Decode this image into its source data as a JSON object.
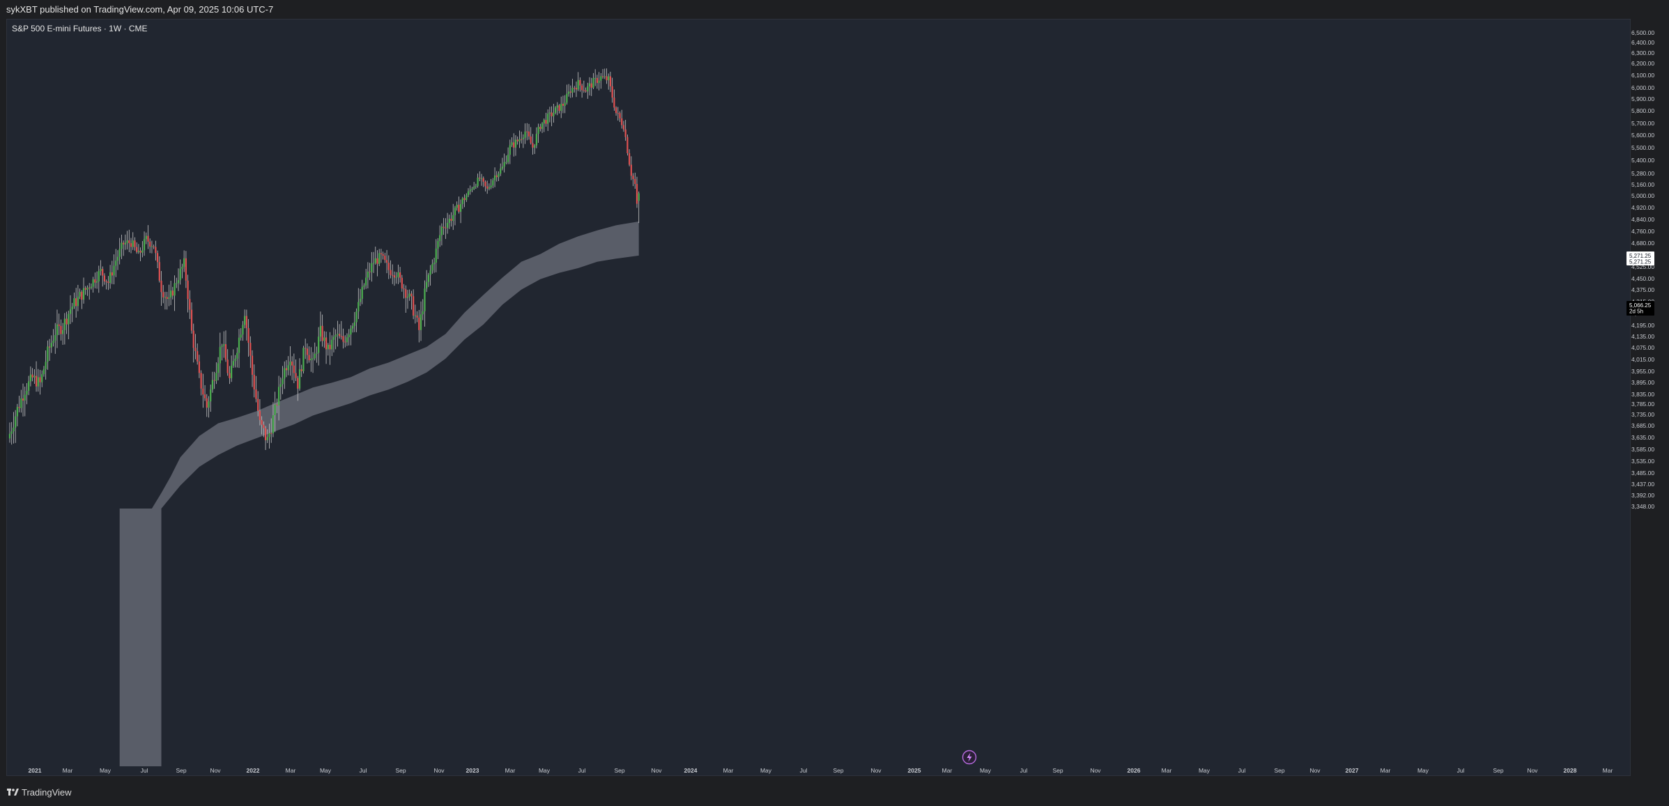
{
  "header": {
    "publisher_line": "sykXBT published on TradingView.com, Apr 09, 2025 10:06 UTC-7"
  },
  "footer": {
    "brand": "TradingView",
    "logo_icon": "tradingview-logo-icon"
  },
  "colors": {
    "up": "#4caf50",
    "down": "#e05252",
    "band": "#5d606b",
    "background": "#212630",
    "wick": "#c8c8c8"
  },
  "chart_data": {
    "type": "candlestick",
    "title": "S&P 500 E-mini Futures · 1W · CME",
    "timeframe": "1W",
    "x_axis_labels": [
      "2021",
      "Mar",
      "May",
      "Jul",
      "Sep",
      "Nov",
      "2022",
      "Mar",
      "May",
      "Jul",
      "Sep",
      "Nov",
      "2023",
      "Mar",
      "May",
      "Jul",
      "Sep",
      "Nov",
      "2024",
      "Mar",
      "May",
      "Jul",
      "Sep",
      "Nov",
      "2025",
      "Mar",
      "May",
      "Jul",
      "Sep",
      "Nov",
      "2026",
      "Mar",
      "May",
      "Jul",
      "Sep",
      "Nov",
      "2027",
      "Mar",
      "May",
      "Jul",
      "Sep",
      "Nov",
      "2028",
      "Mar"
    ],
    "y_axis_labels": [
      "6,500.00",
      "6,400.00",
      "6,300.00",
      "6,200.00",
      "6,100.00",
      "6,000.00",
      "5,900.00",
      "5,800.00",
      "5,700.00",
      "5,600.00",
      "5,500.00",
      "5,400.00",
      "5,280.00",
      "5,160.00",
      "5,000.00",
      "4,920.00",
      "4,840.00",
      "4,760.00",
      "4,680.00",
      "4,600.00",
      "4,525.00",
      "4,450.00",
      "4,375.00",
      "4,315.00",
      "4,255.00",
      "4,195.00",
      "4,135.00",
      "4,075.00",
      "4,015.00",
      "3,955.00",
      "3,895.00",
      "3,835.00",
      "3,785.00",
      "3,735.00",
      "3,685.00",
      "3,635.00",
      "3,585.00",
      "3,535.00",
      "3,485.00",
      "3,437.00",
      "3,392.00",
      "3,348.00"
    ],
    "price_labels": {
      "upper_top": "5,271.25",
      "upper_bottom": "5,271.25",
      "current": "5,066.25",
      "countdown": "2d 5h"
    },
    "series": [
      {
        "type": "close_path",
        "values": [
          [
            0,
            3660
          ],
          [
            4,
            3770
          ],
          [
            8,
            3870
          ],
          [
            12,
            3930
          ],
          [
            16,
            3900
          ],
          [
            20,
            4060
          ],
          [
            24,
            4170
          ],
          [
            28,
            4200
          ],
          [
            32,
            4290
          ],
          [
            36,
            4340
          ],
          [
            40,
            4390
          ],
          [
            44,
            4450
          ],
          [
            48,
            4510
          ],
          [
            52,
            4440
          ],
          [
            56,
            4580
          ],
          [
            60,
            4690
          ],
          [
            64,
            4700
          ],
          [
            68,
            4610
          ],
          [
            72,
            4720
          ],
          [
            76,
            4680
          ],
          [
            80,
            4400
          ],
          [
            84,
            4320
          ],
          [
            88,
            4450
          ],
          [
            92,
            4560
          ],
          [
            96,
            4170
          ],
          [
            100,
            3930
          ],
          [
            104,
            3780
          ],
          [
            108,
            3950
          ],
          [
            112,
            4120
          ],
          [
            116,
            3920
          ],
          [
            120,
            4090
          ],
          [
            124,
            4280
          ],
          [
            128,
            3950
          ],
          [
            132,
            3700
          ],
          [
            136,
            3630
          ],
          [
            140,
            3760
          ],
          [
            144,
            3950
          ],
          [
            148,
            4050
          ],
          [
            152,
            3900
          ],
          [
            156,
            4100
          ],
          [
            160,
            4000
          ],
          [
            164,
            4170
          ],
          [
            168,
            4070
          ],
          [
            172,
            4150
          ],
          [
            176,
            4120
          ],
          [
            180,
            4200
          ],
          [
            184,
            4300
          ],
          [
            188,
            4460
          ],
          [
            192,
            4570
          ],
          [
            196,
            4600
          ],
          [
            200,
            4520
          ],
          [
            204,
            4500
          ],
          [
            208,
            4400
          ],
          [
            212,
            4320
          ],
          [
            216,
            4180
          ],
          [
            220,
            4430
          ],
          [
            224,
            4590
          ],
          [
            228,
            4800
          ],
          [
            232,
            4850
          ],
          [
            236,
            4920
          ],
          [
            240,
            5000
          ],
          [
            244,
            5150
          ],
          [
            248,
            5250
          ],
          [
            252,
            5120
          ],
          [
            256,
            5280
          ],
          [
            260,
            5350
          ],
          [
            264,
            5520
          ],
          [
            268,
            5570
          ],
          [
            272,
            5650
          ],
          [
            276,
            5520
          ],
          [
            280,
            5700
          ],
          [
            284,
            5760
          ],
          [
            288,
            5820
          ],
          [
            292,
            5870
          ],
          [
            296,
            6000
          ],
          [
            300,
            6050
          ],
          [
            304,
            6000
          ],
          [
            308,
            6060
          ],
          [
            312,
            6100
          ],
          [
            316,
            6080
          ],
          [
            320,
            5800
          ],
          [
            324,
            5700
          ],
          [
            328,
            5300
          ],
          [
            332,
            5066
          ]
        ]
      },
      {
        "type": "ma_band",
        "from_week": 58,
        "upper": [
          [
            58,
            3105
          ],
          [
            65,
            3190
          ],
          [
            70,
            3270
          ],
          [
            75,
            3335
          ],
          [
            80,
            3410
          ],
          [
            85,
            3480
          ],
          [
            90,
            3560
          ],
          [
            100,
            3650
          ],
          [
            110,
            3705
          ],
          [
            120,
            3730
          ],
          [
            130,
            3760
          ],
          [
            140,
            3800
          ],
          [
            150,
            3840
          ],
          [
            160,
            3880
          ],
          [
            170,
            3905
          ],
          [
            180,
            3935
          ],
          [
            190,
            3980
          ],
          [
            200,
            4010
          ],
          [
            210,
            4050
          ],
          [
            220,
            4090
          ],
          [
            230,
            4160
          ],
          [
            240,
            4270
          ],
          [
            250,
            4360
          ],
          [
            260,
            4470
          ],
          [
            270,
            4570
          ],
          [
            280,
            4620
          ],
          [
            290,
            4690
          ],
          [
            300,
            4740
          ],
          [
            310,
            4780
          ],
          [
            320,
            4815
          ],
          [
            332,
            4840
          ]
        ],
        "lower": [
          [
            80,
            3310
          ],
          [
            90,
            3440
          ],
          [
            100,
            3520
          ],
          [
            110,
            3570
          ],
          [
            120,
            3610
          ],
          [
            130,
            3640
          ],
          [
            140,
            3670
          ],
          [
            150,
            3700
          ],
          [
            160,
            3740
          ],
          [
            170,
            3770
          ],
          [
            180,
            3800
          ],
          [
            190,
            3840
          ],
          [
            200,
            3870
          ],
          [
            210,
            3910
          ],
          [
            220,
            3960
          ],
          [
            230,
            4030
          ],
          [
            240,
            4130
          ],
          [
            250,
            4210
          ],
          [
            260,
            4310
          ],
          [
            270,
            4390
          ],
          [
            280,
            4460
          ],
          [
            290,
            4500
          ],
          [
            300,
            4530
          ],
          [
            310,
            4570
          ],
          [
            320,
            4590
          ],
          [
            332,
            4610
          ]
        ]
      }
    ]
  }
}
